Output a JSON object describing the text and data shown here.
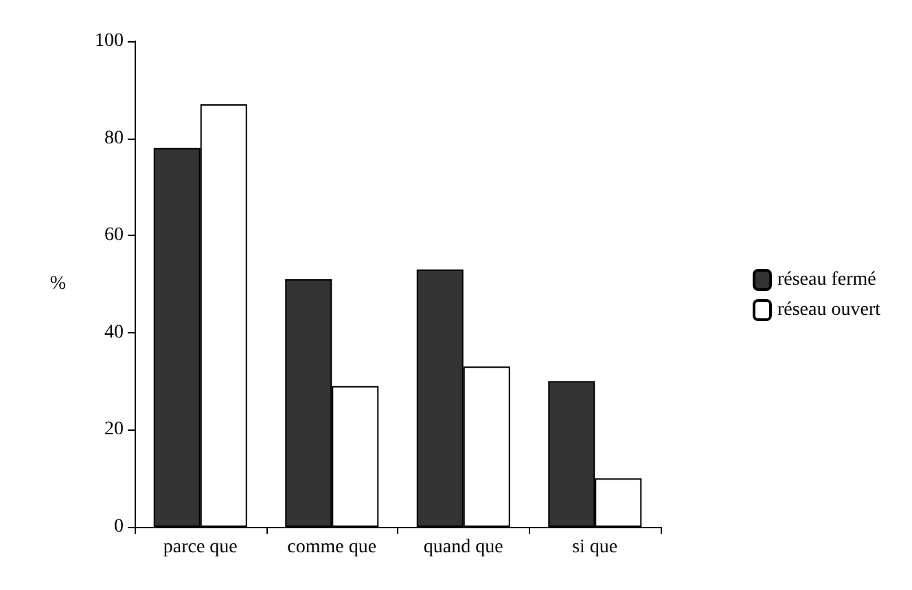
{
  "chart_data": {
    "type": "bar",
    "ylabel": "%",
    "categories": [
      "parce que",
      "comme que",
      "quand que",
      "si que"
    ],
    "series": [
      {
        "name": "réseau fermé",
        "color": "#333333",
        "values": [
          78,
          51,
          53,
          30
        ]
      },
      {
        "name": "réseau ouvert",
        "color": "#ffffff",
        "values": [
          87,
          29,
          33,
          10
        ]
      }
    ],
    "ylim": [
      0,
      100
    ],
    "yticks": [
      0,
      20,
      40,
      60,
      80,
      100
    ],
    "grid": false,
    "legend": "right"
  }
}
